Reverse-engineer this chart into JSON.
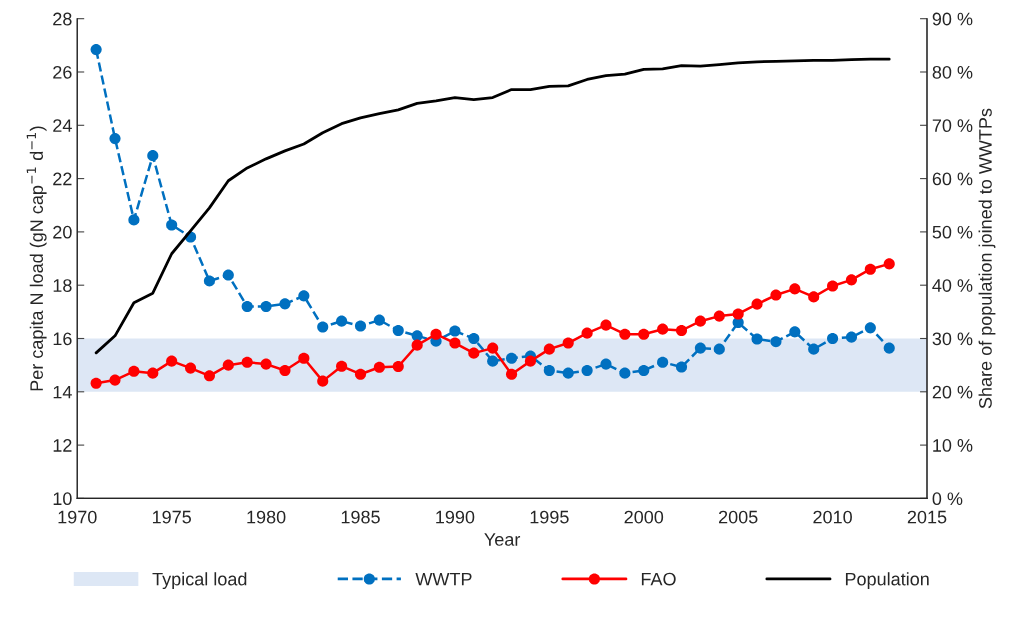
{
  "chart_data": {
    "type": "line",
    "xlabel": "Year",
    "ylabel": "Per capita N load (gN cap$^{−1}$ d$^{−1}$)",
    "y2label": "Share of population joined to WWTPs",
    "x": [
      1971,
      1972,
      1973,
      1974,
      1975,
      1976,
      1977,
      1978,
      1979,
      1980,
      1981,
      1982,
      1983,
      1984,
      1985,
      1986,
      1987,
      1988,
      1989,
      1990,
      1991,
      1992,
      1993,
      1994,
      1995,
      1996,
      1997,
      1998,
      1999,
      2000,
      2001,
      2002,
      2003,
      2004,
      2005,
      2006,
      2007,
      2008,
      2009,
      2010,
      2011,
      2012,
      2013
    ],
    "series": [
      {
        "name": "WWTP",
        "color": "#0070c0",
        "line_style": "dashed",
        "marker": "circle",
        "values": [
          26.84,
          23.5,
          20.45,
          22.86,
          20.26,
          19.81,
          18.16,
          18.38,
          17.2,
          17.2,
          17.3,
          17.6,
          16.43,
          16.65,
          16.47,
          16.69,
          16.3,
          16.1,
          15.9,
          16.28,
          16.0,
          15.15,
          15.26,
          15.34,
          14.8,
          14.7,
          14.8,
          15.04,
          14.7,
          14.8,
          15.11,
          14.93,
          15.64,
          15.6,
          16.6,
          15.98,
          15.88,
          16.25,
          15.6,
          16.0,
          16.05,
          16.4,
          15.64
        ]
      },
      {
        "name": "FAO",
        "color": "#ff0000",
        "line_style": "solid",
        "marker": "circle",
        "values": [
          14.32,
          14.44,
          14.77,
          14.7,
          15.15,
          14.89,
          14.6,
          15.0,
          15.11,
          15.04,
          14.8,
          15.26,
          14.4,
          14.96,
          14.66,
          14.92,
          14.95,
          15.75,
          16.16,
          15.83,
          15.45,
          15.64,
          14.66,
          15.15,
          15.6,
          15.83,
          16.2,
          16.5,
          16.16,
          16.16,
          16.35,
          16.3,
          16.65,
          16.84,
          16.92,
          17.29,
          17.63,
          17.86,
          17.56,
          17.97,
          18.2,
          18.6,
          18.8
        ]
      },
      {
        "name": "Population",
        "color": "#000000",
        "line_style": "solid",
        "marker": "none",
        "axis": "y2",
        "values": [
          27.3,
          30.5,
          36.7,
          38.5,
          45.9,
          50.2,
          54.5,
          59.6,
          62.0,
          63.7,
          65.2,
          66.5,
          68.6,
          70.3,
          71.4,
          72.2,
          72.9,
          74.1,
          74.6,
          75.2,
          74.8,
          75.2,
          76.7,
          76.7,
          77.3,
          77.4,
          78.6,
          79.3,
          79.6,
          80.5,
          80.6,
          81.2,
          81.1,
          81.4,
          81.7,
          81.9,
          82.0,
          82.1,
          82.2,
          82.2,
          82.3,
          82.4,
          82.4
        ]
      }
    ],
    "bands": [
      {
        "axis": "y",
        "from": 14,
        "to": 16,
        "label": "Typical load",
        "color": "#dde7f5"
      }
    ],
    "xlim": [
      1970,
      2015
    ],
    "xticks": [
      1970,
      1975,
      1980,
      1985,
      1990,
      1995,
      2000,
      2005,
      2010,
      2015
    ],
    "ylim": [
      10,
      28
    ],
    "yticks": [
      10,
      12,
      14,
      16,
      18,
      20,
      22,
      24,
      26,
      28
    ],
    "y2lim": [
      0,
      90
    ],
    "y2ticks": [
      {
        "value": 0,
        "label": "0 %"
      },
      {
        "value": 10,
        "label": "10 %"
      },
      {
        "value": 20,
        "label": "20 %"
      },
      {
        "value": 30,
        "label": "30 %"
      },
      {
        "value": 40,
        "label": "40 %"
      },
      {
        "value": 50,
        "label": "50 %"
      },
      {
        "value": 60,
        "label": "60 %"
      },
      {
        "value": 70,
        "label": "70 %"
      },
      {
        "value": 80,
        "label": "80 %"
      },
      {
        "value": 90,
        "label": "90 %"
      }
    ],
    "grid": false,
    "legend": "bottom"
  }
}
